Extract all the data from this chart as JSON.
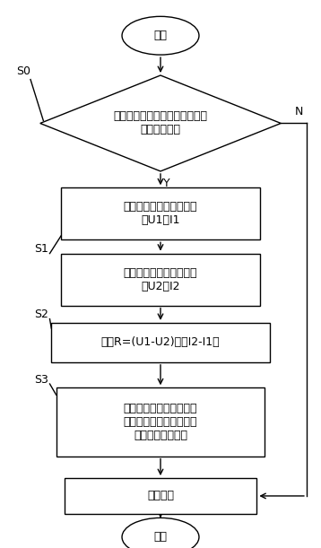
{
  "bg_color": "#ffffff",
  "line_color": "#000000",
  "text_color": "#000000",
  "start_label": "开始",
  "end_label": "结束",
  "diamond_label": "判断允许的输入电流是否达到预\n设第一电流值",
  "box1_label": "限流预设第二电流值，采\n样U1和I1",
  "box2_label": "限流预设第三电流值，采\n样U2和I2",
  "box3_label": "计算R=(U1-U2)／（I2-I1）",
  "box4_label": "基于输入线路的阻抗，控\n制输入线路的电压降以限\n制输入线路的电流",
  "box5_label": "正常充电",
  "S0": "S0",
  "S1": "S1",
  "S2": "S2",
  "S3": "S3",
  "Y_label": "Y",
  "N_label": "N",
  "font_size": 9
}
